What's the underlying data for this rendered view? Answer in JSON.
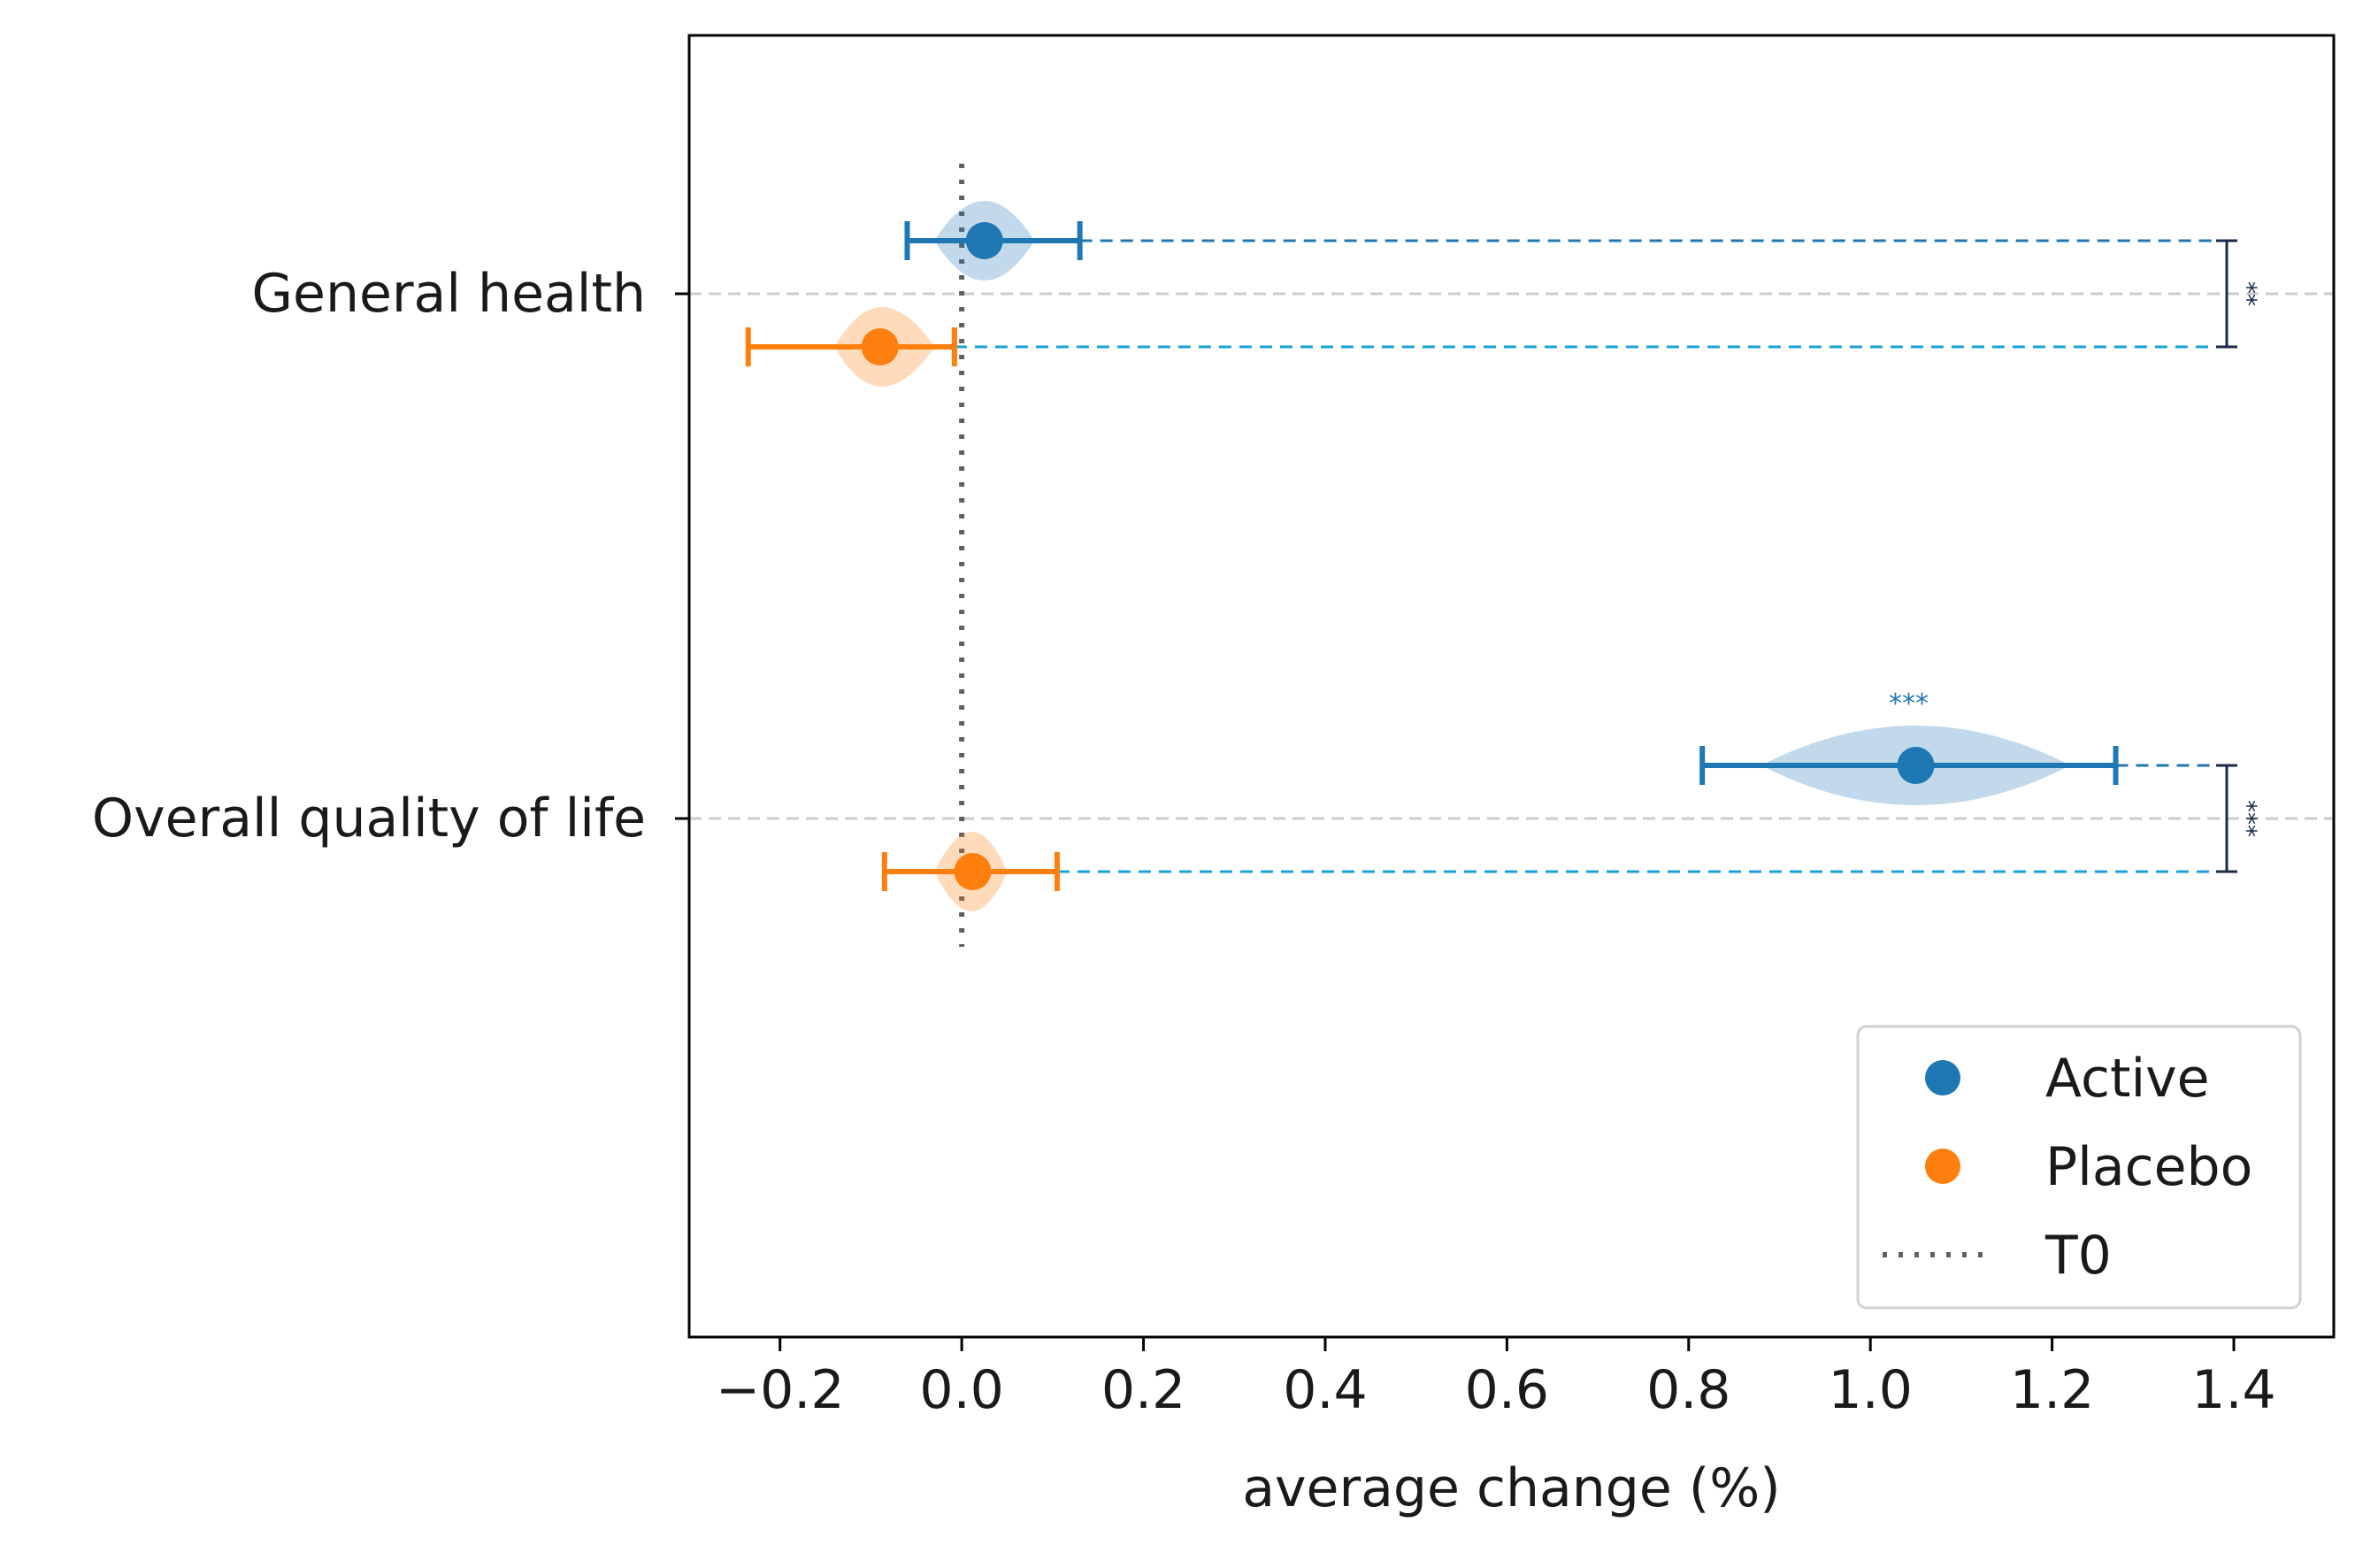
{
  "chart_data": {
    "type": "scatter",
    "title": "",
    "xlabel": "average change (%)",
    "ylabel": "",
    "xlim": [
      -0.3,
      1.51
    ],
    "xticks": [
      -0.2,
      0.0,
      0.2,
      0.4,
      0.6,
      0.8,
      1.0,
      1.2,
      1.4
    ],
    "xtick_labels": [
      "−0.2",
      "0.0",
      "0.2",
      "0.4",
      "0.6",
      "0.8",
      "1.0",
      "1.2",
      "1.4"
    ],
    "categories": [
      "General health",
      "Overall quality of life"
    ],
    "grid": "horizontal dashed at category ticks",
    "legend_position": "lower right",
    "series": [
      {
        "name": "Active",
        "color": "#1f77b4",
        "means": [
          0.025,
          1.05
        ],
        "ci_low": [
          -0.06,
          0.815
        ],
        "ci_high": [
          0.13,
          1.27
        ],
        "spread_low": [
          -0.03,
          0.88
        ],
        "spread_high": [
          0.08,
          1.22
        ],
        "annotations": [
          "",
          "***"
        ]
      },
      {
        "name": "Placebo",
        "color": "#ff7f0e",
        "means": [
          -0.09,
          0.012
        ],
        "ci_low": [
          -0.235,
          -0.085
        ],
        "ci_high": [
          -0.008,
          0.105
        ],
        "spread_low": [
          -0.14,
          -0.03
        ],
        "spread_high": [
          -0.03,
          0.05
        ],
        "annotations": [
          "",
          ""
        ]
      }
    ],
    "reference_line": {
      "name": "T0",
      "x": 0.0,
      "style": "dotted",
      "color": "#606060"
    },
    "comparisons": [
      {
        "category": "General health",
        "x": 1.4,
        "label": "**"
      },
      {
        "category": "Overall quality of life",
        "x": 1.4,
        "label": "***"
      }
    ],
    "comparison_line_color": "#17a2d8",
    "bracket_color": "#1a2a4a"
  }
}
